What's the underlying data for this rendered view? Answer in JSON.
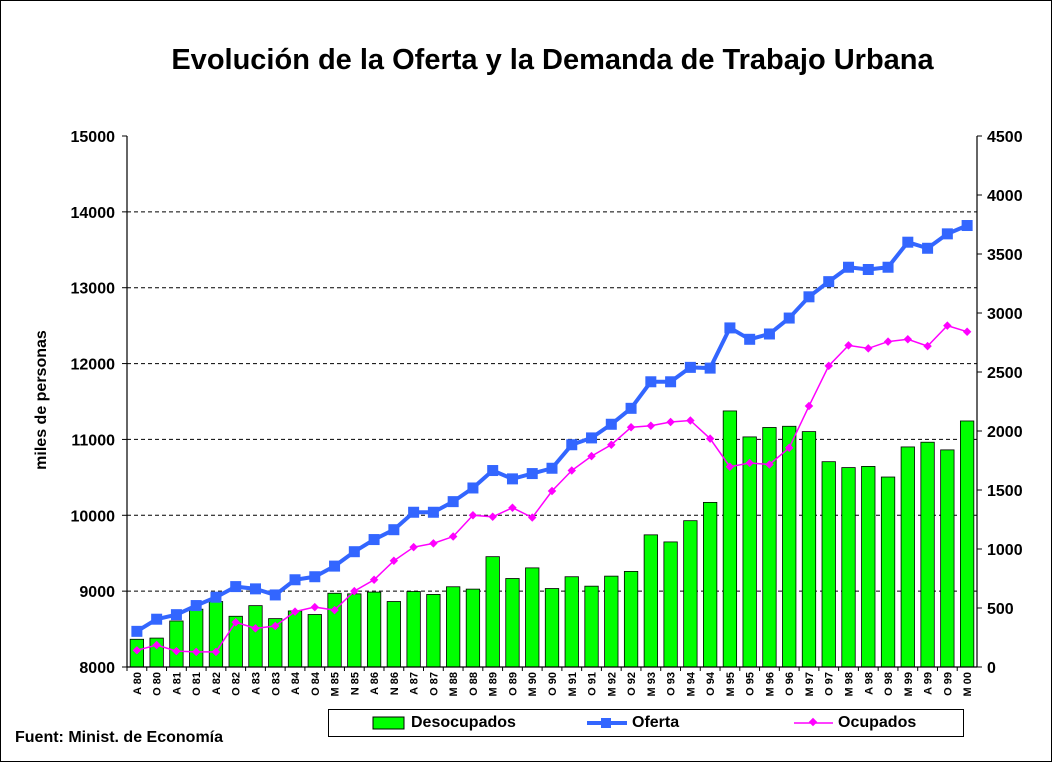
{
  "chart_data": {
    "type": "bar",
    "title": "Evolución de la Oferta y la Demanda de Trabajo Urbana",
    "ylabel": "miles de personas",
    "ylim": [
      8000,
      15000
    ],
    "y_ticks": [
      "8000",
      "9000",
      "10000",
      "11000",
      "12000",
      "13000",
      "14000",
      "15000"
    ],
    "y2lim": [
      0,
      4500
    ],
    "y2_ticks": [
      "0",
      "500",
      "1000",
      "1500",
      "2000",
      "2500",
      "3000",
      "3500",
      "4000",
      "4500"
    ],
    "grid": true,
    "legend_position": "bottom",
    "categories": [
      "A 80",
      "O 80",
      "A 81",
      "O 81",
      "A 82",
      "O 82",
      "A 83",
      "O 83",
      "A 84",
      "O 84",
      "M 85",
      "N 85",
      "A 86",
      "N 86",
      "A 87",
      "O 87",
      "M 88",
      "O 88",
      "M 89",
      "O 89",
      "M 90",
      "O 90",
      "M 91",
      "O 91",
      "M 92",
      "O 92",
      "M 93",
      "O 93",
      "M 94",
      "O 94",
      "M 95",
      "O 95",
      "M 96",
      "O 96",
      "M 97",
      "O 97",
      "M 98",
      "A 98",
      "O 98",
      "M 99",
      "A 99",
      "O 99",
      "M 00"
    ],
    "series": [
      {
        "name": "Desocupados",
        "type": "bar",
        "axis": "right",
        "color": "#00ff00",
        "values": [
          235,
          245,
          390,
          490,
          555,
          430,
          520,
          410,
          475,
          445,
          625,
          620,
          635,
          555,
          640,
          615,
          680,
          660,
          935,
          750,
          840,
          665,
          765,
          685,
          770,
          810,
          1120,
          1060,
          1240,
          1395,
          2170,
          1950,
          2030,
          2040,
          1995,
          1740,
          1690,
          1700,
          1610,
          1865,
          1905,
          1840,
          2085
        ]
      },
      {
        "name": "Oferta",
        "type": "line",
        "axis": "left",
        "color": "#3366ff",
        "values": [
          8470,
          8630,
          8690,
          8810,
          8920,
          9060,
          9030,
          8950,
          9150,
          9190,
          9330,
          9520,
          9680,
          9810,
          10040,
          10040,
          10180,
          10360,
          10590,
          10480,
          10550,
          10620,
          10930,
          11020,
          11200,
          11410,
          11760,
          11760,
          11950,
          11940,
          12470,
          12320,
          12390,
          12600,
          12880,
          13080,
          13270,
          13240,
          13270,
          13600,
          13520,
          13710,
          13820
        ]
      },
      {
        "name": "Ocupados",
        "type": "line",
        "axis": "left",
        "color": "#ff00ff",
        "values": [
          8220,
          8290,
          8210,
          8200,
          8200,
          8590,
          8510,
          8540,
          8730,
          8790,
          8750,
          9000,
          9150,
          9400,
          9580,
          9630,
          9720,
          10000,
          9980,
          10100,
          9970,
          10320,
          10590,
          10780,
          10930,
          11160,
          11180,
          11230,
          11250,
          11010,
          10640,
          10690,
          10670,
          10890,
          11440,
          11970,
          12240,
          12200,
          12290,
          12320,
          12230,
          12500,
          12420
        ]
      }
    ]
  },
  "source": "Fuent: Minist. de Economía"
}
